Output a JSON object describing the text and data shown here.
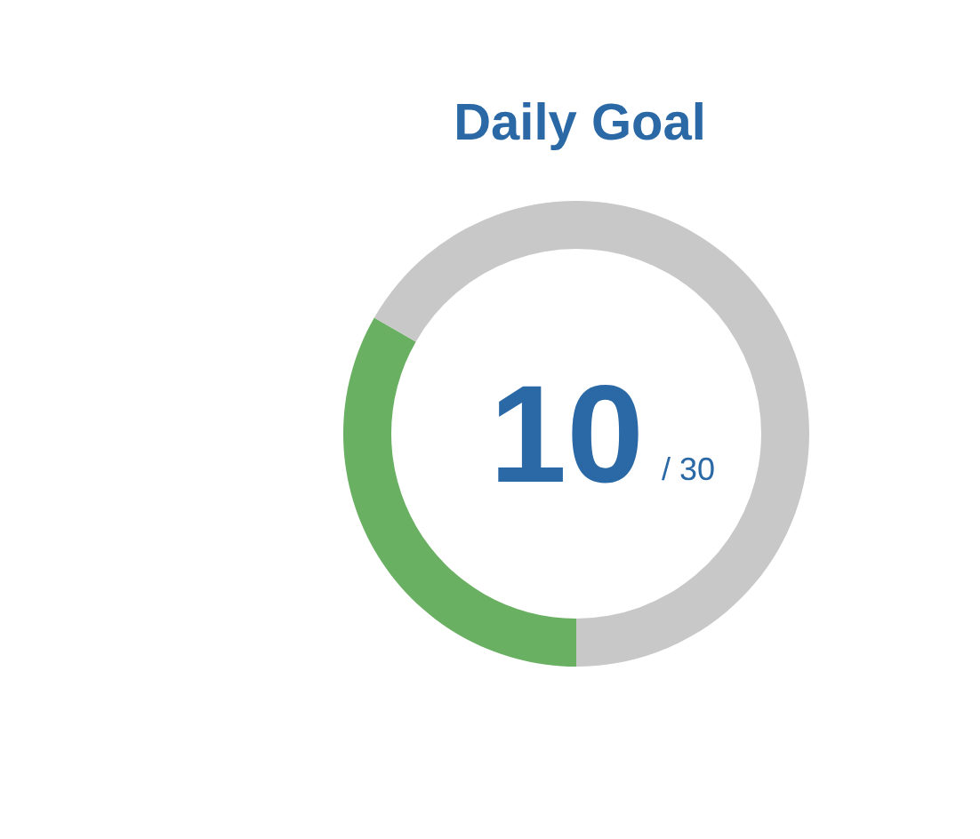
{
  "chart_data": {
    "type": "donut",
    "title": "Daily Goal",
    "categories": [
      null,
      null
    ],
    "values": [
      33.3,
      66.7
    ],
    "colors": [
      "#69b062",
      "#c8c8c8"
    ],
    "annotations": [
      "10",
      "/ 30"
    ]
  }
}
